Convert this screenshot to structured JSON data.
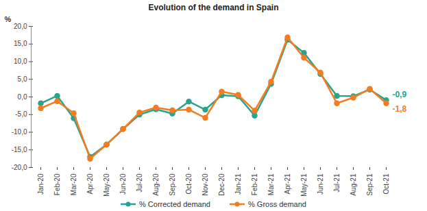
{
  "chart_data": {
    "type": "line",
    "title": "Evolution of the demand in Spain",
    "y_label": "%",
    "categories": [
      "Jan-20",
      "Feb-20",
      "Mar-20",
      "Apr-20",
      "May-20",
      "Jun-20",
      "Jul-20",
      "Aug-20",
      "Sep-20",
      "Oct-20",
      "Nov-20",
      "Dec-20",
      "Jan-21",
      "Feb-21",
      "Mar-21",
      "Apr-21",
      "May-21",
      "Jun-21",
      "Jul-21",
      "Aug-21",
      "Sep-21",
      "Oct-21"
    ],
    "series": [
      {
        "name": "% Corrected demand",
        "color": "#2aa38e",
        "marker": "circle",
        "values": [
          -1.8,
          0.3,
          -6.0,
          -17.0,
          -13.5,
          -9.1,
          -5.0,
          -3.5,
          -4.7,
          -1.3,
          -3.6,
          0.5,
          0.2,
          -5.3,
          3.7,
          16.2,
          12.5,
          6.5,
          0.3,
          0.2,
          2.1,
          -0.9
        ],
        "value_labels": [
          null,
          null,
          null,
          null,
          null,
          null,
          null,
          null,
          null,
          null,
          null,
          null,
          null,
          null,
          null,
          null,
          null,
          null,
          null,
          null,
          null,
          "-0,9"
        ]
      },
      {
        "name": "% Gross demand",
        "color": "#f47c20",
        "marker": "circle",
        "values": [
          -3.2,
          -1.2,
          -4.6,
          -17.5,
          -13.5,
          -9.1,
          -4.4,
          -3.0,
          -3.8,
          -3.6,
          -5.9,
          1.5,
          0.6,
          -3.9,
          4.3,
          16.9,
          11.1,
          6.9,
          -1.8,
          -0.2,
          2.3,
          -1.8
        ],
        "value_labels": [
          null,
          null,
          null,
          null,
          null,
          null,
          null,
          null,
          null,
          null,
          null,
          null,
          null,
          null,
          null,
          null,
          null,
          null,
          null,
          null,
          null,
          "-1,8"
        ]
      }
    ],
    "ylim": [
      -20,
      20
    ],
    "yticks": [
      {
        "value": -20,
        "label": "-20,0"
      },
      {
        "value": -15,
        "label": "-15,0"
      },
      {
        "value": -10,
        "label": "-10,0"
      },
      {
        "value": -5,
        "label": "-5,0"
      },
      {
        "value": 0,
        "label": "0,0"
      },
      {
        "value": 5,
        "label": "5,0"
      },
      {
        "value": 10,
        "label": "10,0"
      },
      {
        "value": 15,
        "label": "15,0"
      },
      {
        "value": 20,
        "label": "20,0"
      }
    ],
    "grid": false,
    "legend": "bottom"
  }
}
